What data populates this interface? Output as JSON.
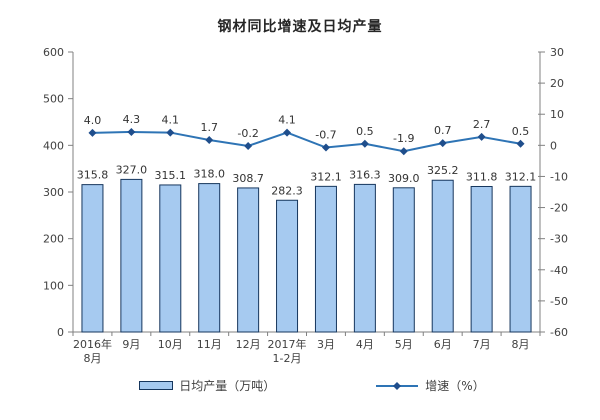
{
  "chart_data": {
    "type": "combo",
    "title": "钢材同比增速及日均产量",
    "categories": [
      [
        "2016年",
        "8月"
      ],
      [
        "9月"
      ],
      [
        "10月"
      ],
      [
        "11月"
      ],
      [
        "12月"
      ],
      [
        "2017年",
        "1-2月"
      ],
      [
        "3月"
      ],
      [
        "4月"
      ],
      [
        "5月"
      ],
      [
        "6月"
      ],
      [
        "7月"
      ],
      [
        "8月"
      ]
    ],
    "series": [
      {
        "name": "日均产量（万吨）",
        "type": "bar",
        "axis": "left",
        "values": [
          315.8,
          327.0,
          315.1,
          318.0,
          308.7,
          282.3,
          312.1,
          316.3,
          309.0,
          325.2,
          311.8,
          312.1
        ]
      },
      {
        "name": "增速（%）",
        "type": "line",
        "axis": "right",
        "values": [
          4.0,
          4.3,
          4.1,
          1.7,
          -0.2,
          4.1,
          -0.7,
          0.5,
          -1.9,
          0.7,
          2.7,
          0.5
        ]
      }
    ],
    "left_axis": {
      "min": 0,
      "max": 600,
      "step": 100,
      "ticks": [
        "600",
        "500",
        "400",
        "300",
        "200",
        "100",
        "0"
      ]
    },
    "right_axis": {
      "min": -60,
      "max": 30,
      "step": 10,
      "ticks": [
        "30",
        "20",
        "10",
        "0",
        "-10",
        "-20",
        "-30",
        "-40",
        "-50",
        "-60"
      ]
    },
    "xlabel": "",
    "ylabel": "",
    "grid": false,
    "legend_position": "bottom",
    "legend": [
      {
        "label": "日均产量（万吨）",
        "swatch": "bar"
      },
      {
        "label": "增速（%）",
        "swatch": "line-diamond"
      }
    ],
    "colors": {
      "bar_fill": "#A6CAF0",
      "bar_border": "#16365D",
      "line": "#2E74B5",
      "marker": "#1F4E8C",
      "axis": "#808080",
      "text": "#404040",
      "label": "#333333"
    }
  }
}
